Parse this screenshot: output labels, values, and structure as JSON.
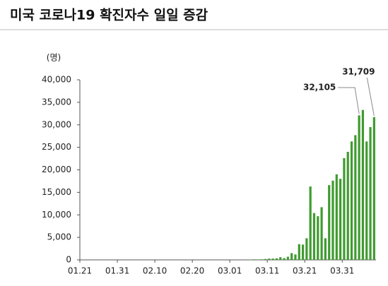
{
  "chart_data": {
    "type": "bar",
    "title": "미국 코로나19 확진자수 일일 증감",
    "y_label": "(명)",
    "categories": [
      "01.21",
      null,
      null,
      null,
      null,
      null,
      null,
      null,
      null,
      null,
      "01.31",
      null,
      null,
      null,
      null,
      null,
      null,
      null,
      null,
      null,
      "02.10",
      null,
      null,
      null,
      null,
      null,
      null,
      null,
      null,
      null,
      "02.20",
      null,
      null,
      null,
      null,
      null,
      null,
      null,
      null,
      null,
      "03.01",
      null,
      null,
      null,
      null,
      null,
      null,
      null,
      null,
      null,
      "03.11",
      null,
      null,
      null,
      null,
      null,
      null,
      null,
      null,
      null,
      "03.21",
      null,
      null,
      null,
      null,
      null,
      null,
      null,
      null,
      null,
      "03.31",
      null,
      null,
      null,
      null,
      null,
      null,
      null,
      null
    ],
    "values": [
      1,
      0,
      0,
      1,
      0,
      1,
      0,
      0,
      0,
      0,
      0,
      1,
      0,
      1,
      0,
      0,
      0,
      0,
      0,
      0,
      1,
      0,
      0,
      0,
      0,
      0,
      0,
      0,
      0,
      0,
      0,
      0,
      0,
      0,
      1,
      0,
      1,
      2,
      0,
      1,
      8,
      7,
      23,
      20,
      33,
      75,
      110,
      95,
      120,
      200,
      290,
      300,
      350,
      600,
      400,
      700,
      1500,
      1200,
      3500,
      3400,
      4800,
      16300,
      10400,
      9700,
      11700,
      4800,
      16600,
      17600,
      19000,
      18000,
      22600,
      24000,
      26300,
      27700,
      32105,
      33300,
      26300,
      29500,
      31709
    ],
    "value_labels": [
      null,
      null,
      null,
      null,
      null,
      null,
      null,
      null,
      null,
      null,
      null,
      null,
      null,
      null,
      null,
      null,
      null,
      null,
      null,
      null,
      null,
      null,
      null,
      null,
      null,
      null,
      null,
      null,
      null,
      null,
      null,
      null,
      null,
      null,
      null,
      null,
      null,
      null,
      null,
      null,
      null,
      null,
      null,
      null,
      null,
      null,
      null,
      null,
      null,
      null,
      null,
      null,
      null,
      null,
      null,
      null,
      null,
      null,
      null,
      null,
      null,
      null,
      null,
      null,
      null,
      null,
      null,
      null,
      null,
      null,
      null,
      null,
      null,
      null,
      "32,105",
      null,
      null,
      null,
      "31,709"
    ],
    "color": "#3f9b2f",
    "ylim": [
      0,
      40000
    ],
    "yticks": [
      0,
      {
        "value": 5000,
        "label": "5,000"
      },
      {
        "value": 10000,
        "label": "10,000"
      },
      {
        "value": 15000,
        "label": "15,000"
      },
      {
        "value": 20000,
        "label": "20,000"
      },
      {
        "value": 25000,
        "label": "25,000"
      },
      {
        "value": 30000,
        "label": "30,000"
      },
      {
        "value": 35000,
        "label": "35,000"
      },
      {
        "value": 40000,
        "label": "40,000"
      }
    ],
    "grid": false
  }
}
